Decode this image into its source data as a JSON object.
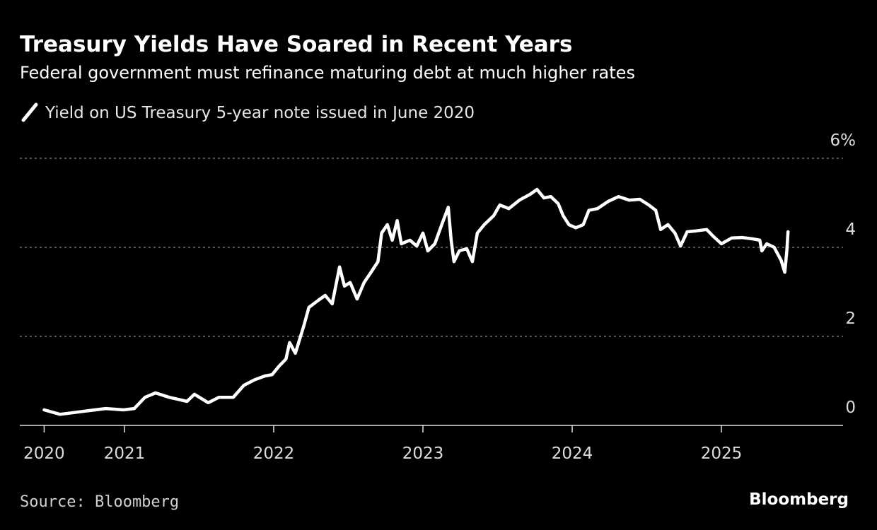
{
  "chart_data": {
    "type": "line",
    "title": "Treasury Yields Have Soared in Recent Years",
    "subtitle": "Federal government must refinance maturing debt at much higher rates",
    "legend": [
      "Yield on US Treasury 5-year note issued in June 2020"
    ],
    "legend_placement": "top-left",
    "xlabel": "",
    "ylabel": "",
    "x_tick_labels": [
      "2020",
      "2021",
      "2022",
      "2023",
      "2024",
      "2025"
    ],
    "y_tick_labels": [
      "6%",
      "4",
      "2",
      "0"
    ],
    "y_ticks": [
      6,
      4,
      2,
      0
    ],
    "ylim": [
      0,
      6
    ],
    "xlim": [
      "2020-06-01",
      "2025-10-01"
    ],
    "grid": "horizontal dotted",
    "y_axis_side": "right",
    "colors": {
      "background": "#000000",
      "line": "#ffffff",
      "grid": "#6e6e6e"
    },
    "series": [
      {
        "name": "Yield on US Treasury 5-year note issued in June 2020",
        "x": [
          "2020-06-18",
          "2020-07-27",
          "2020-09-26",
          "2020-11-16",
          "2020-12-30",
          "2021-01-25",
          "2021-02-20",
          "2021-03-18",
          "2021-04-21",
          "2021-06-03",
          "2021-06-21",
          "2021-07-25",
          "2021-08-20",
          "2021-09-24",
          "2021-10-20",
          "2021-11-14",
          "2021-12-10",
          "2021-12-28",
          "2022-01-14",
          "2022-01-31",
          "2022-02-09",
          "2022-02-23",
          "2022-03-16",
          "2022-03-28",
          "2022-04-20",
          "2022-05-07",
          "2022-05-24",
          "2022-06-11",
          "2022-06-23",
          "2022-07-07",
          "2022-07-24",
          "2022-08-10",
          "2022-08-27",
          "2022-09-13",
          "2022-09-22",
          "2022-10-06",
          "2022-10-18",
          "2022-10-30",
          "2022-11-09",
          "2022-11-30",
          "2022-12-17",
          "2023-01-01",
          "2023-01-13",
          "2023-01-30",
          "2023-02-16",
          "2023-03-04",
          "2023-03-11",
          "2023-03-18",
          "2023-03-31",
          "2023-04-18",
          "2023-05-02",
          "2023-05-14",
          "2023-05-31",
          "2023-06-23",
          "2023-07-08",
          "2023-07-30",
          "2023-08-25",
          "2023-09-20",
          "2023-10-07",
          "2023-10-24",
          "2023-11-10",
          "2023-11-28",
          "2023-12-10",
          "2023-12-24",
          "2024-01-10",
          "2024-01-28",
          "2024-02-11",
          "2024-03-03",
          "2024-03-29",
          "2024-04-24",
          "2024-05-20",
          "2024-06-15",
          "2024-07-07",
          "2024-07-24",
          "2024-08-05",
          "2024-08-23",
          "2024-09-09",
          "2024-09-23",
          "2024-10-09",
          "2024-10-31",
          "2024-11-26",
          "2024-12-13",
          "2025-01-01",
          "2025-01-26",
          "2025-02-21",
          "2025-03-18",
          "2025-04-05",
          "2025-04-10",
          "2025-04-22",
          "2025-05-10",
          "2025-05-27",
          "2025-06-05",
          "2025-06-10",
          "2025-06-13"
        ],
        "values": [
          0.35,
          0.25,
          0.32,
          0.38,
          0.35,
          0.38,
          0.63,
          0.73,
          0.63,
          0.54,
          0.7,
          0.51,
          0.63,
          0.63,
          0.9,
          1.02,
          1.11,
          1.14,
          1.33,
          1.49,
          1.86,
          1.62,
          2.25,
          2.65,
          2.81,
          2.92,
          2.73,
          3.56,
          3.13,
          3.21,
          2.84,
          3.21,
          3.44,
          3.68,
          4.32,
          4.51,
          4.16,
          4.6,
          4.08,
          4.16,
          4.03,
          4.32,
          3.92,
          4.08,
          4.51,
          4.9,
          4.16,
          3.68,
          3.92,
          3.97,
          3.68,
          4.32,
          4.51,
          4.71,
          4.95,
          4.87,
          5.06,
          5.19,
          5.3,
          5.11,
          5.14,
          4.98,
          4.71,
          4.51,
          4.44,
          4.51,
          4.83,
          4.87,
          5.03,
          5.14,
          5.06,
          5.08,
          4.95,
          4.83,
          4.4,
          4.51,
          4.32,
          4.03,
          4.35,
          4.37,
          4.4,
          4.24,
          4.08,
          4.21,
          4.22,
          4.19,
          4.16,
          3.92,
          4.08,
          4.0,
          3.71,
          3.44,
          3.92,
          4.35
        ]
      }
    ]
  },
  "footer": {
    "source": "Source: Bloomberg",
    "logo": "Bloomberg"
  }
}
